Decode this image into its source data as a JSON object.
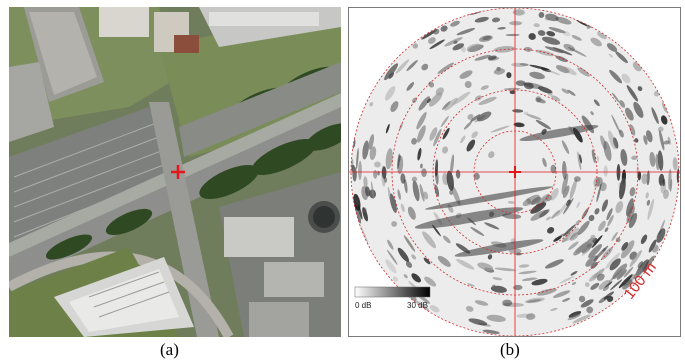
{
  "panel_a": {
    "caption": "(a)",
    "center_marker_color": "#e3161c",
    "image_type": "aerial-photograph"
  },
  "panel_b": {
    "caption": "(b)",
    "range_label": "100 m",
    "range_ring_color": "#d22a2a",
    "crosshair_color": "#e3161c",
    "colorbar": {
      "min_label": "0 dB",
      "max_label": "30 dB"
    }
  }
}
